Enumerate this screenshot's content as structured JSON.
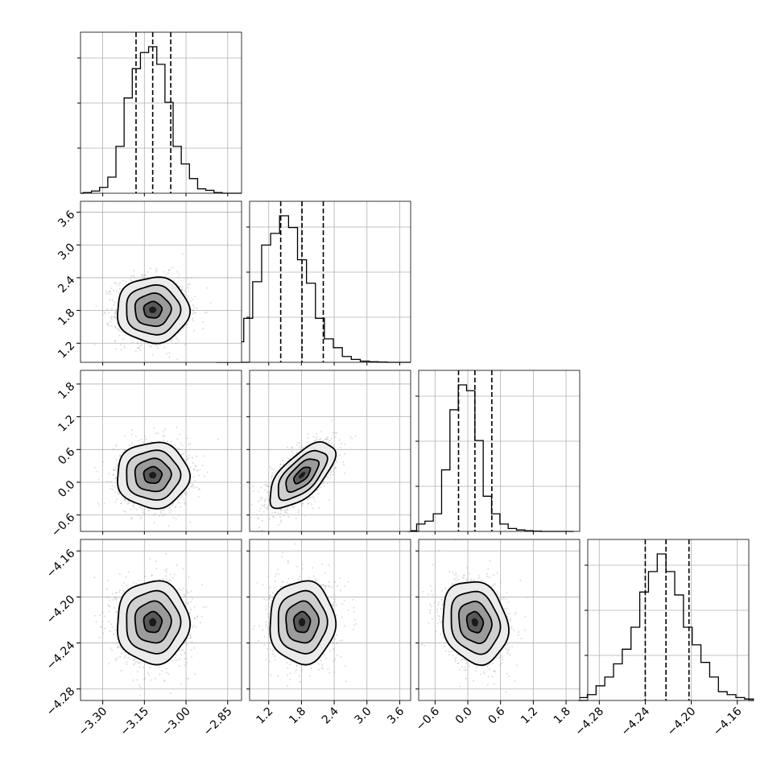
{
  "chart_data": {
    "type": "corner",
    "grid": true,
    "quantile_lines": "dashed",
    "parameters": [
      {
        "range": [
          -3.38,
          -2.8
        ],
        "ticks": [
          -3.3,
          -3.15,
          -3.0,
          -2.85
        ],
        "tick_labels": [
          "−3.30",
          "−3.15",
          "−3.00",
          "−2.85"
        ],
        "quantiles": [
          -3.18,
          -3.12,
          -3.055
        ],
        "hist_bins": [
          0.005,
          0.015,
          0.04,
          0.11,
          0.32,
          0.65,
          0.85,
          0.96,
          1.0,
          0.88,
          0.62,
          0.32,
          0.2,
          0.1,
          0.03,
          0.02,
          0.005
        ]
      },
      {
        "range": [
          0.85,
          3.8
        ],
        "ticks": [
          1.2,
          1.8,
          2.4,
          3.0,
          3.6
        ],
        "tick_labels": [
          "1.2",
          "1.8",
          "2.4",
          "3.0",
          "3.6"
        ],
        "quantiles": [
          1.42,
          1.81,
          2.2
        ],
        "hist_bins": [
          0.03,
          0.06,
          0.14,
          0.3,
          0.55,
          0.8,
          0.88,
          1.0,
          0.92,
          0.7,
          0.54,
          0.3,
          0.16,
          0.1,
          0.04,
          0.02,
          0.008,
          0.004,
          0.002
        ]
      },
      {
        "range": [
          -0.9,
          2.05
        ],
        "ticks": [
          -0.6,
          0.0,
          0.6,
          1.2,
          1.8
        ],
        "tick_labels": [
          "−0.6",
          "0.0",
          "0.6",
          "1.2",
          "1.8"
        ],
        "quantiles": [
          -0.17,
          0.13,
          0.44
        ],
        "hist_bins": [
          0.005,
          0.05,
          0.07,
          0.12,
          0.42,
          0.83,
          1.0,
          0.96,
          0.62,
          0.24,
          0.12,
          0.05,
          0.02,
          0.01,
          0.005,
          0.002
        ]
      },
      {
        "range": [
          -4.29,
          -4.15
        ],
        "ticks": [
          -4.28,
          -4.24,
          -4.2,
          -4.16
        ],
        "tick_labels": [
          "−4.28",
          "−4.24",
          "−4.20",
          "−4.16"
        ],
        "quantiles": [
          -4.24,
          -4.222,
          -4.202
        ],
        "hist_bins": [
          0.02,
          0.04,
          0.1,
          0.16,
          0.25,
          0.35,
          0.5,
          0.74,
          0.88,
          1.0,
          0.88,
          0.72,
          0.5,
          0.38,
          0.26,
          0.16,
          0.06,
          0.04,
          0.02,
          0.01
        ]
      }
    ],
    "pairs": [
      {
        "row": 1,
        "col": 0,
        "mean": [
          -3.12,
          1.81
        ],
        "sd": [
          0.065,
          0.3
        ],
        "rho": 0.0
      },
      {
        "row": 2,
        "col": 0,
        "mean": [
          -3.12,
          0.13
        ],
        "sd": [
          0.065,
          0.3
        ],
        "rho": 0.0
      },
      {
        "row": 2,
        "col": 1,
        "mean": [
          1.81,
          0.13
        ],
        "sd": [
          0.3,
          0.3
        ],
        "rho": 0.65
      },
      {
        "row": 3,
        "col": 0,
        "mean": [
          -3.12,
          -4.222
        ],
        "sd": [
          0.065,
          0.018
        ],
        "rho": 0.0
      },
      {
        "row": 3,
        "col": 1,
        "mean": [
          1.81,
          -4.222
        ],
        "sd": [
          0.3,
          0.018
        ],
        "rho": 0.0
      },
      {
        "row": 3,
        "col": 2,
        "mean": [
          0.13,
          -4.222
        ],
        "sd": [
          0.3,
          0.018
        ],
        "rho": -0.15
      }
    ],
    "contour_levels_sigma": [
      0.5,
      1.0,
      1.5,
      2.0
    ]
  }
}
